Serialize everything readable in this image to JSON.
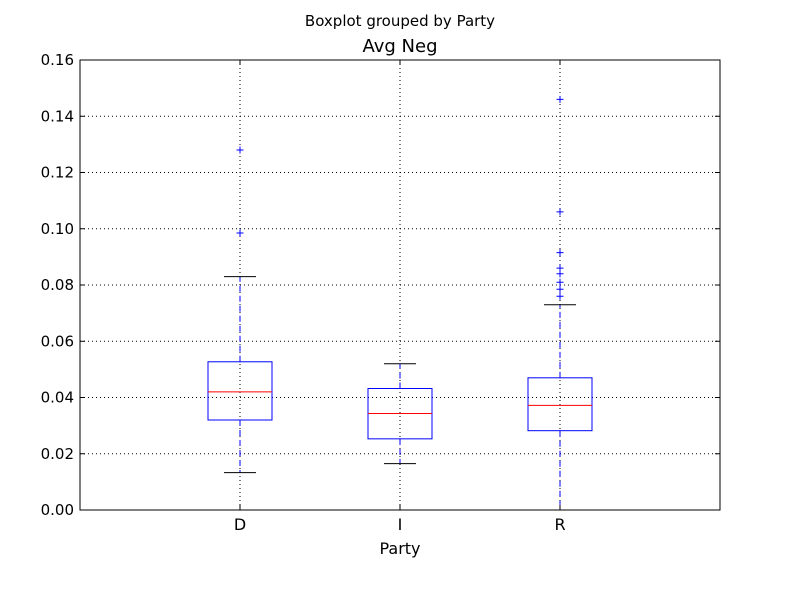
{
  "chart_data": {
    "type": "boxplot",
    "suptitle": "Boxplot grouped by Party",
    "title": "Avg Neg",
    "xlabel": "Party",
    "ylabel": "",
    "ylim": [
      0,
      0.16
    ],
    "yticks": [
      0.0,
      0.02,
      0.04,
      0.06,
      0.08,
      0.1,
      0.12,
      0.14,
      0.16
    ],
    "ytick_labels": [
      "0.00",
      "0.02",
      "0.04",
      "0.06",
      "0.08",
      "0.10",
      "0.12",
      "0.14",
      "0.16"
    ],
    "grid": true,
    "categories": [
      "D",
      "I",
      "R"
    ],
    "boxes": [
      {
        "category": "D",
        "whisker_low": 0.0133,
        "q1": 0.032,
        "median": 0.042,
        "q3": 0.0527,
        "whisker_high": 0.083,
        "outliers": [
          0.0985,
          0.128
        ]
      },
      {
        "category": "I",
        "whisker_low": 0.0165,
        "q1": 0.0253,
        "median": 0.0343,
        "q3": 0.0432,
        "whisker_high": 0.052,
        "outliers": []
      },
      {
        "category": "R",
        "whisker_low": 0.0,
        "q1": 0.0282,
        "median": 0.0372,
        "q3": 0.047,
        "whisker_high": 0.073,
        "outliers": [
          0.076,
          0.0785,
          0.081,
          0.084,
          0.086,
          0.0915,
          0.106,
          0.146
        ]
      }
    ],
    "colors": {
      "box": "#0000ff",
      "median": "#ff0000",
      "cap": "#000000",
      "grid": "#000000"
    }
  }
}
